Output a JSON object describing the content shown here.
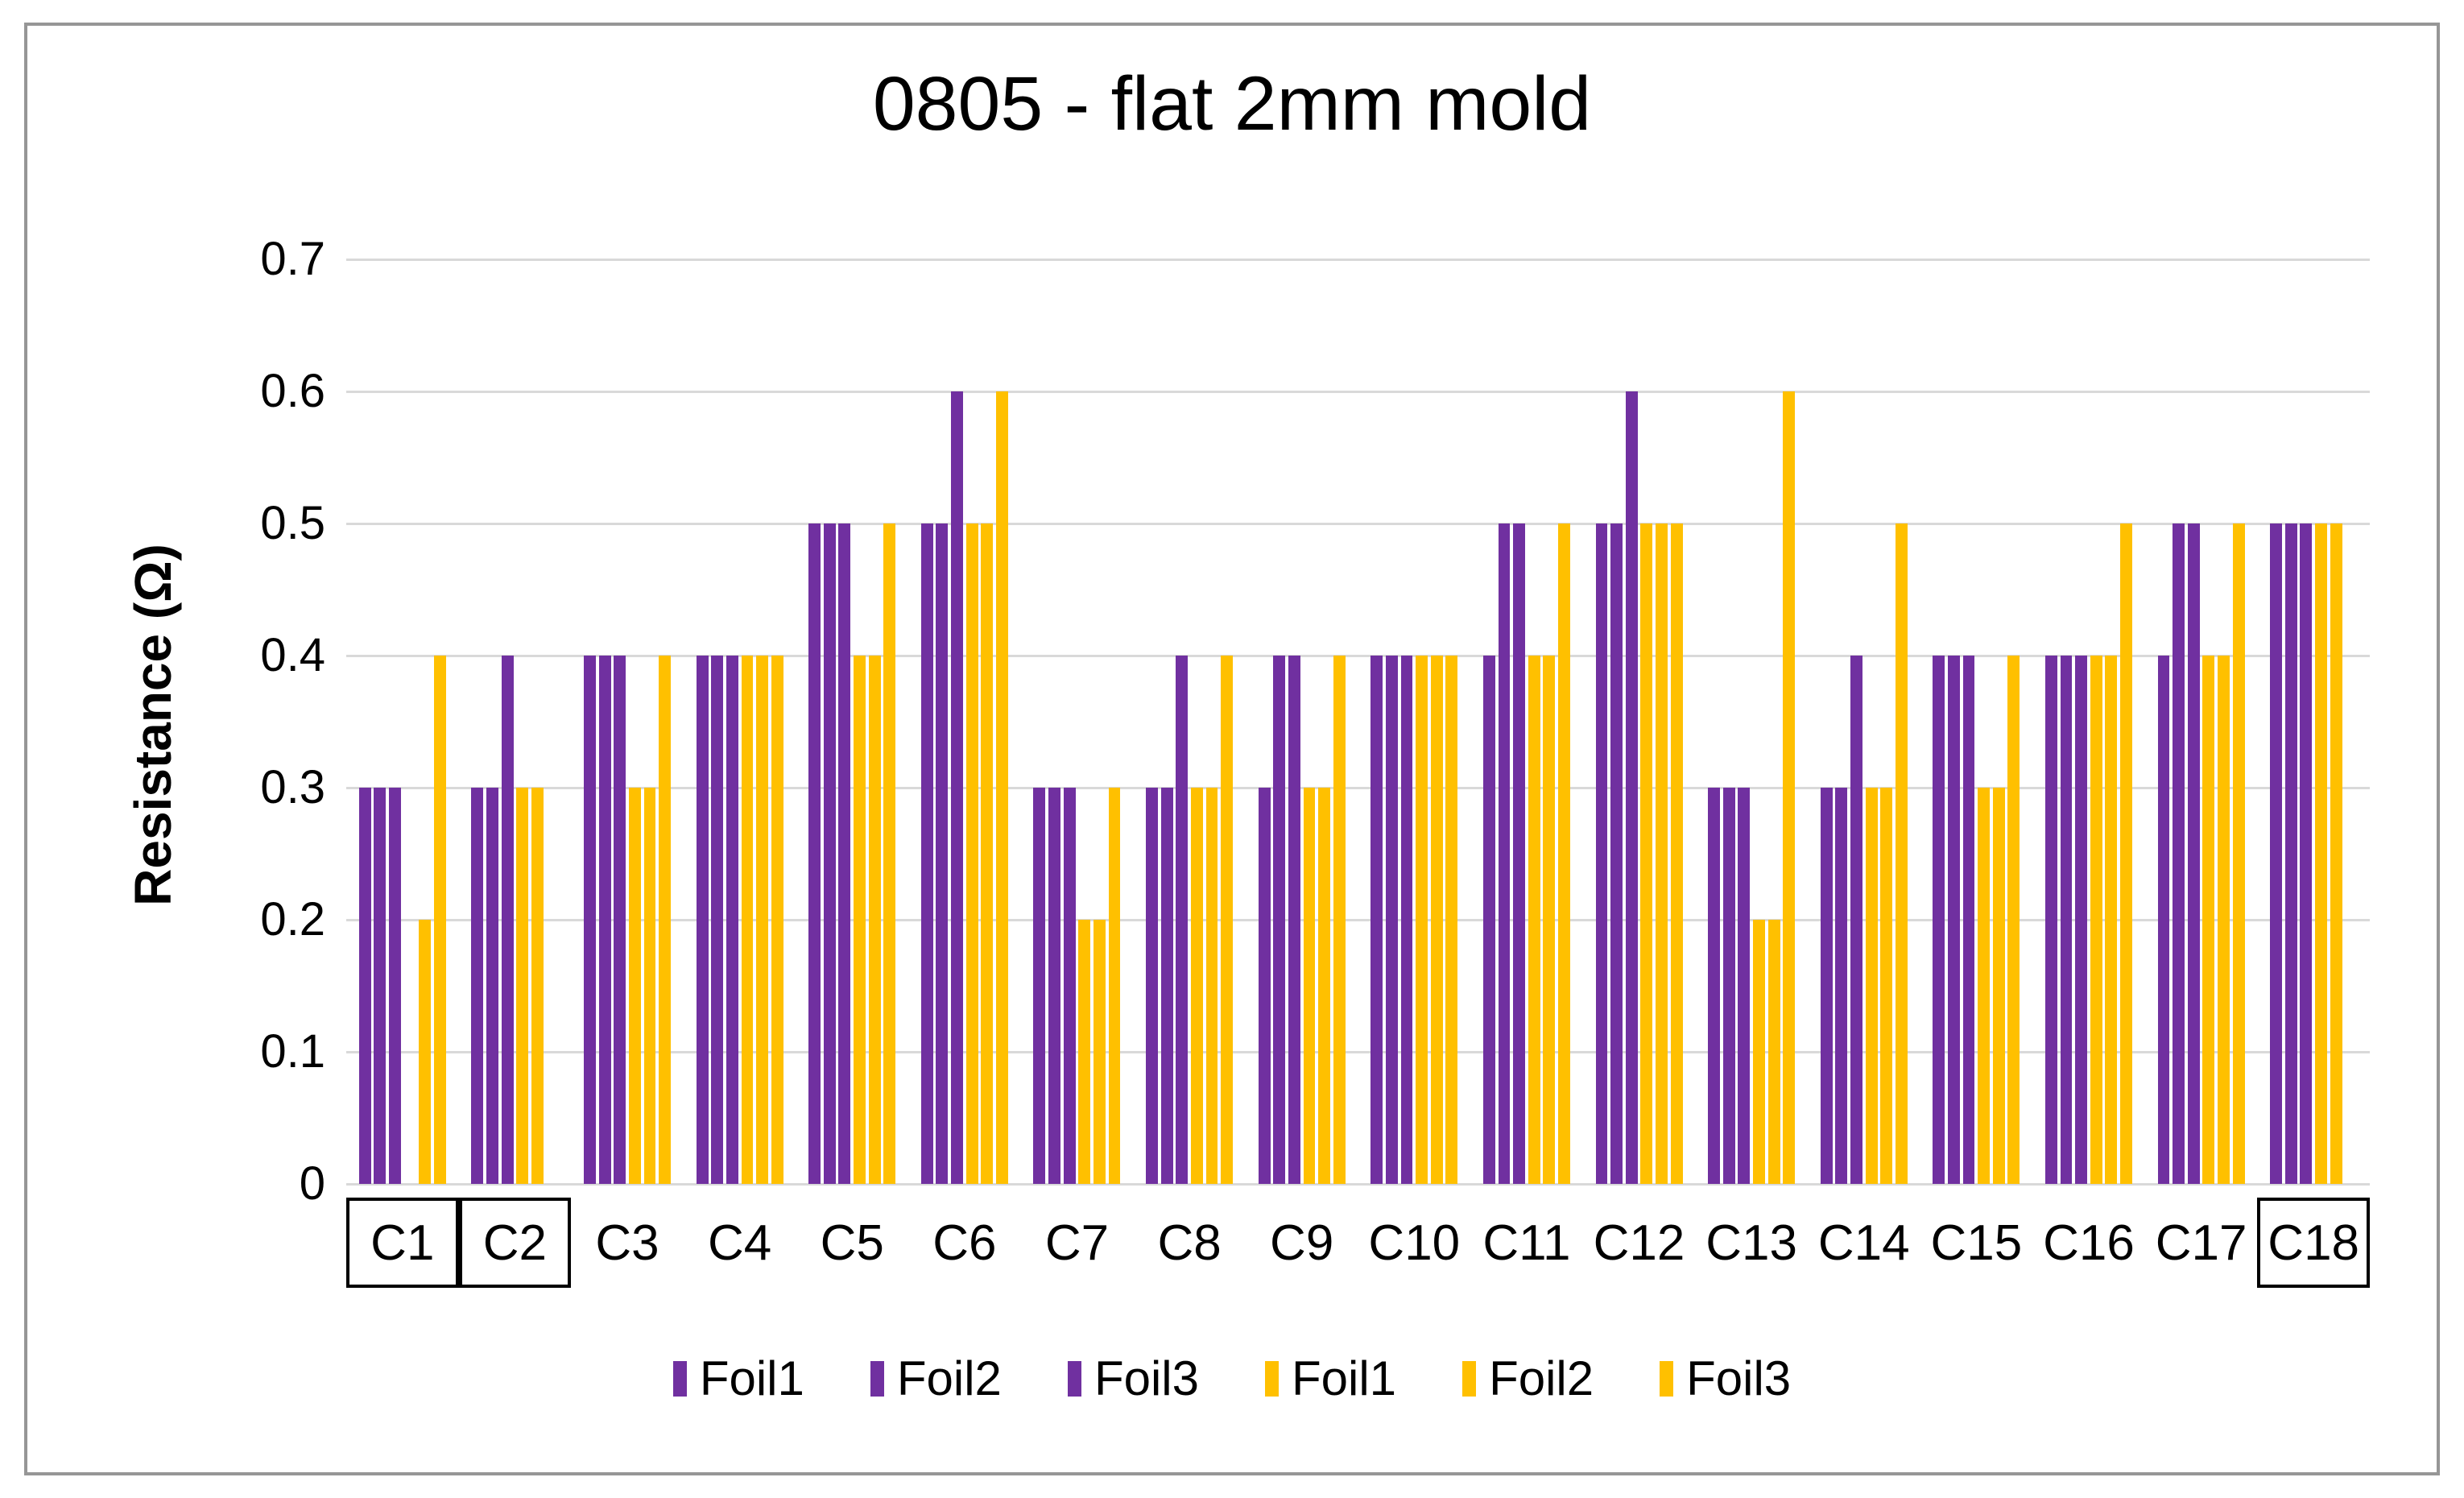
{
  "chart_data": {
    "type": "bar",
    "title": "0805 - flat 2mm mold",
    "ylabel": "Resistance (Ω)",
    "xlabel": "",
    "ylim": [
      0,
      0.7
    ],
    "yticks": [
      "0",
      "0.1",
      "0.2",
      "0.3",
      "0.4",
      "0.5",
      "0.6",
      "0.7"
    ],
    "grid": true,
    "legend_position": "bottom",
    "categories": [
      "C1",
      "C2",
      "C3",
      "C4",
      "C5",
      "C6",
      "C7",
      "C8",
      "C9",
      "C10",
      "C11",
      "C12",
      "C13",
      "C14",
      "C15",
      "C16",
      "C17",
      "C18"
    ],
    "boxed_categories": [
      "C1",
      "C2",
      "C18"
    ],
    "series": [
      {
        "name": "Foil1",
        "color": "#7030A0",
        "values": [
          0.3,
          0.3,
          0.4,
          0.4,
          0.5,
          0.5,
          0.3,
          0.3,
          0.3,
          0.4,
          0.4,
          0.5,
          0.3,
          0.3,
          0.4,
          0.4,
          0.4,
          0.5
        ]
      },
      {
        "name": "Foil2",
        "color": "#7030A0",
        "values": [
          0.3,
          0.3,
          0.4,
          0.4,
          0.5,
          0.5,
          0.3,
          0.3,
          0.4,
          0.4,
          0.5,
          0.5,
          0.3,
          0.3,
          0.4,
          0.4,
          0.5,
          0.5
        ]
      },
      {
        "name": "Foil3",
        "color": "#7030A0",
        "values": [
          0.3,
          0.4,
          0.4,
          0.4,
          0.5,
          0.6,
          0.3,
          0.4,
          0.4,
          0.4,
          0.5,
          0.6,
          0.3,
          0.4,
          0.4,
          0.4,
          0.5,
          0.5
        ]
      },
      {
        "name": "Foil1",
        "color": "#FFC000",
        "values": [
          0,
          0.3,
          0.3,
          0.4,
          0.4,
          0.5,
          0.2,
          0.3,
          0.3,
          0.4,
          0.4,
          0.5,
          0.2,
          0.3,
          0.3,
          0.4,
          0.4,
          0.5
        ]
      },
      {
        "name": "Foil2",
        "color": "#FFC000",
        "values": [
          0.2,
          0.3,
          0.3,
          0.4,
          0.4,
          0.5,
          0.2,
          0.3,
          0.3,
          0.4,
          0.4,
          0.5,
          0.2,
          0.3,
          0.3,
          0.4,
          0.4,
          0.5
        ]
      },
      {
        "name": "Foil3",
        "color": "#FFC000",
        "values": [
          0.4,
          0,
          0.4,
          0.4,
          0.5,
          0.6,
          0.3,
          0.4,
          0.4,
          0.4,
          0.5,
          0.5,
          0.6,
          0.5,
          0.4,
          0.5,
          0.5,
          0
        ]
      }
    ]
  },
  "colors": {
    "purple": "#7030A0",
    "gold": "#FFC000",
    "gridline": "#D9D9D9",
    "frame_border": "#969696",
    "text": "#000000",
    "background": "#FFFFFF"
  }
}
